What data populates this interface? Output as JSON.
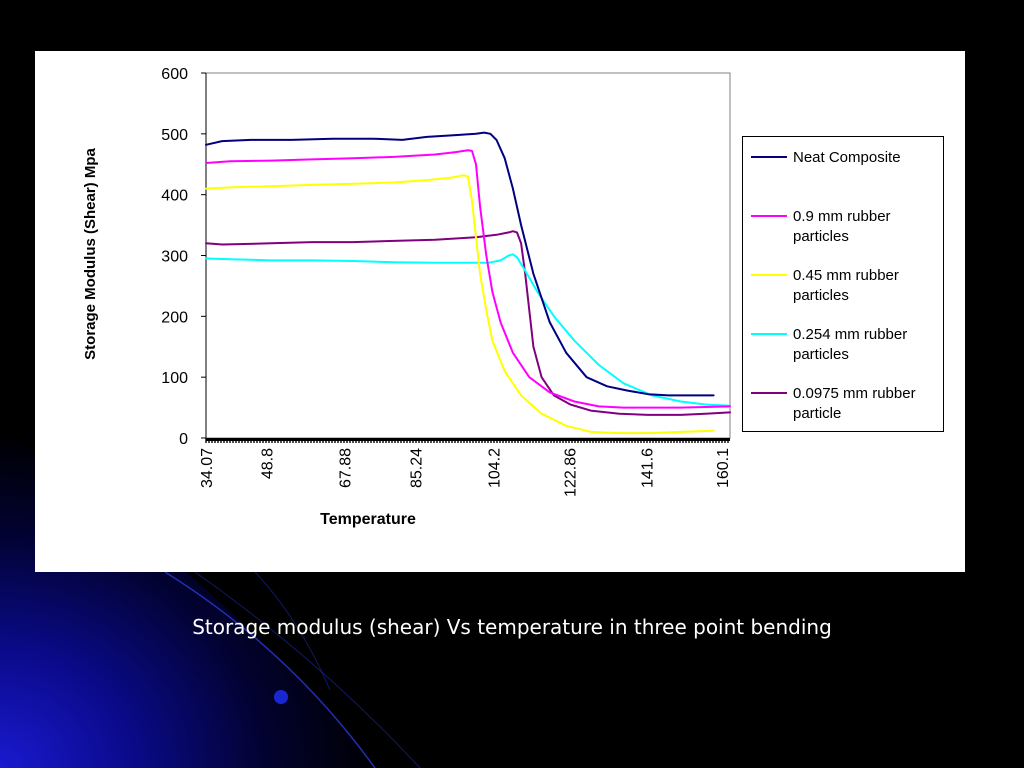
{
  "slide": {
    "caption": "Storage modulus (shear) Vs temperature in three point bending",
    "background_color": "#000000",
    "accent_color": "#0a1aa8"
  },
  "chart_data": {
    "type": "line",
    "title": "",
    "xlabel": "Temperature",
    "ylabel": "Storage Modulus (Shear) Mpa",
    "xlim": [
      34.07,
      162
    ],
    "ylim": [
      0,
      600
    ],
    "x_tick_labels": [
      "34.07",
      "48.8",
      "67.88",
      "85.24",
      "104.2",
      "122.86",
      "141.6",
      "160.1"
    ],
    "x_tick_values": [
      34.07,
      48.8,
      67.88,
      85.24,
      104.2,
      122.86,
      141.6,
      160.1
    ],
    "y_ticks": [
      0,
      100,
      200,
      300,
      400,
      500,
      600
    ],
    "grid": false,
    "legend_position": "right",
    "series": [
      {
        "name": "Neat Composite",
        "color": "#000080",
        "x": [
          34.07,
          38,
          45,
          55,
          65,
          75,
          82,
          88,
          95,
          100,
          102,
          103.5,
          105,
          107,
          109,
          111,
          114,
          118,
          122,
          127,
          132,
          137,
          142,
          147,
          152,
          158
        ],
        "y": [
          482,
          488,
          490,
          490,
          492,
          492,
          490,
          495,
          498,
          500,
          502,
          500,
          490,
          460,
          410,
          350,
          270,
          190,
          140,
          100,
          85,
          78,
          72,
          70,
          70,
          70
        ]
      },
      {
        "name": "0.9 mm rubber particles",
        "color": "#ff00ff",
        "x": [
          34.07,
          40,
          50,
          60,
          70,
          80,
          90,
          95,
          98,
          99,
          100,
          101,
          102.5,
          104,
          106,
          109,
          113,
          118,
          124,
          130,
          136,
          143,
          150,
          156,
          162
        ],
        "y": [
          452,
          455,
          456,
          458,
          460,
          462,
          466,
          470,
          473,
          472,
          450,
          380,
          300,
          240,
          190,
          140,
          100,
          75,
          60,
          52,
          50,
          50,
          50,
          51,
          52
        ]
      },
      {
        "name": "0.45 mm rubber particles",
        "color": "#ffff00",
        "x": [
          34.07,
          40,
          50,
          60,
          70,
          80,
          88,
          94,
          97,
          98,
          99,
          100,
          101,
          102.5,
          104,
          107,
          111,
          116,
          122,
          128,
          135,
          142,
          150,
          158
        ],
        "y": [
          410,
          412,
          414,
          416,
          418,
          420,
          424,
          428,
          432,
          430,
          390,
          330,
          270,
          210,
          160,
          110,
          70,
          40,
          20,
          10,
          8,
          8,
          10,
          12
        ]
      },
      {
        "name": "0.254 mm rubber particles",
        "color": "#00ffff",
        "x": [
          34.07,
          40,
          50,
          60,
          70,
          80,
          90,
          98,
          103,
          106,
          108,
          109,
          110,
          112,
          115,
          119,
          124,
          130,
          136,
          143,
          150,
          156,
          162
        ],
        "y": [
          295,
          294,
          292,
          292,
          291,
          289,
          288,
          288,
          288,
          292,
          300,
          302,
          297,
          275,
          240,
          200,
          160,
          120,
          90,
          70,
          60,
          55,
          53
        ]
      },
      {
        "name": "0.0975 mm rubber particle",
        "color": "#800080",
        "x": [
          34.07,
          38,
          50,
          60,
          70,
          80,
          90,
          100,
          105,
          108,
          109,
          110,
          111,
          112,
          113,
          114,
          116,
          119,
          123,
          128,
          135,
          142,
          150,
          156,
          162
        ],
        "y": [
          320,
          318,
          320,
          322,
          322,
          324,
          326,
          330,
          334,
          338,
          340,
          338,
          320,
          270,
          210,
          150,
          100,
          70,
          55,
          45,
          40,
          38,
          38,
          40,
          42
        ]
      }
    ]
  }
}
